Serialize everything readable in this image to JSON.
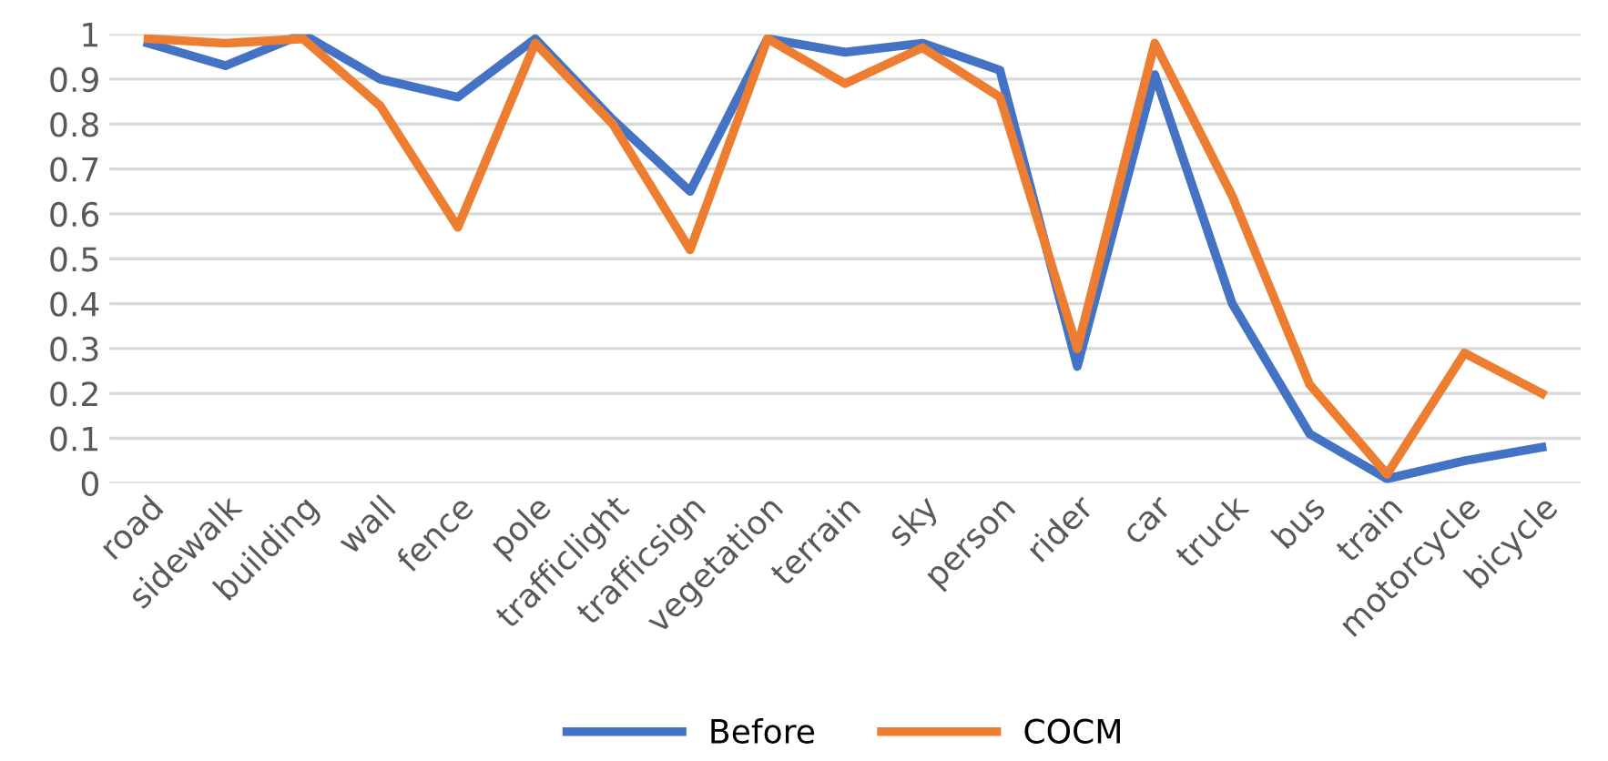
{
  "chart_data": {
    "type": "line",
    "categories": [
      "road",
      "sidewalk",
      "building",
      "wall",
      "fence",
      "pole",
      "trafficlight",
      "trafficsign",
      "vegetation",
      "terrain",
      "sky",
      "person",
      "rider",
      "car",
      "truck",
      "bus",
      "train",
      "motorcycle",
      "bicycle"
    ],
    "series": [
      {
        "name": "Before",
        "color": "#4472c4",
        "values": [
          0.98,
          0.93,
          1.0,
          0.9,
          0.86,
          0.99,
          0.81,
          0.65,
          0.99,
          0.96,
          0.98,
          0.92,
          0.26,
          0.91,
          0.4,
          0.11,
          0.01,
          0.05,
          0.08
        ]
      },
      {
        "name": "COCM",
        "color": "#ed7d31",
        "values": [
          0.99,
          0.98,
          0.99,
          0.84,
          0.57,
          0.98,
          0.8,
          0.52,
          0.99,
          0.89,
          0.97,
          0.86,
          0.3,
          0.98,
          0.64,
          0.22,
          0.02,
          0.29,
          0.2
        ]
      }
    ],
    "ylim": [
      0,
      1
    ],
    "yticks": [
      0,
      0.1,
      0.2,
      0.3,
      0.4,
      0.5,
      0.6,
      0.7,
      0.8,
      0.9,
      1
    ],
    "grid": "y",
    "legend": "bottom",
    "marker": "none",
    "line_style": "solid"
  }
}
